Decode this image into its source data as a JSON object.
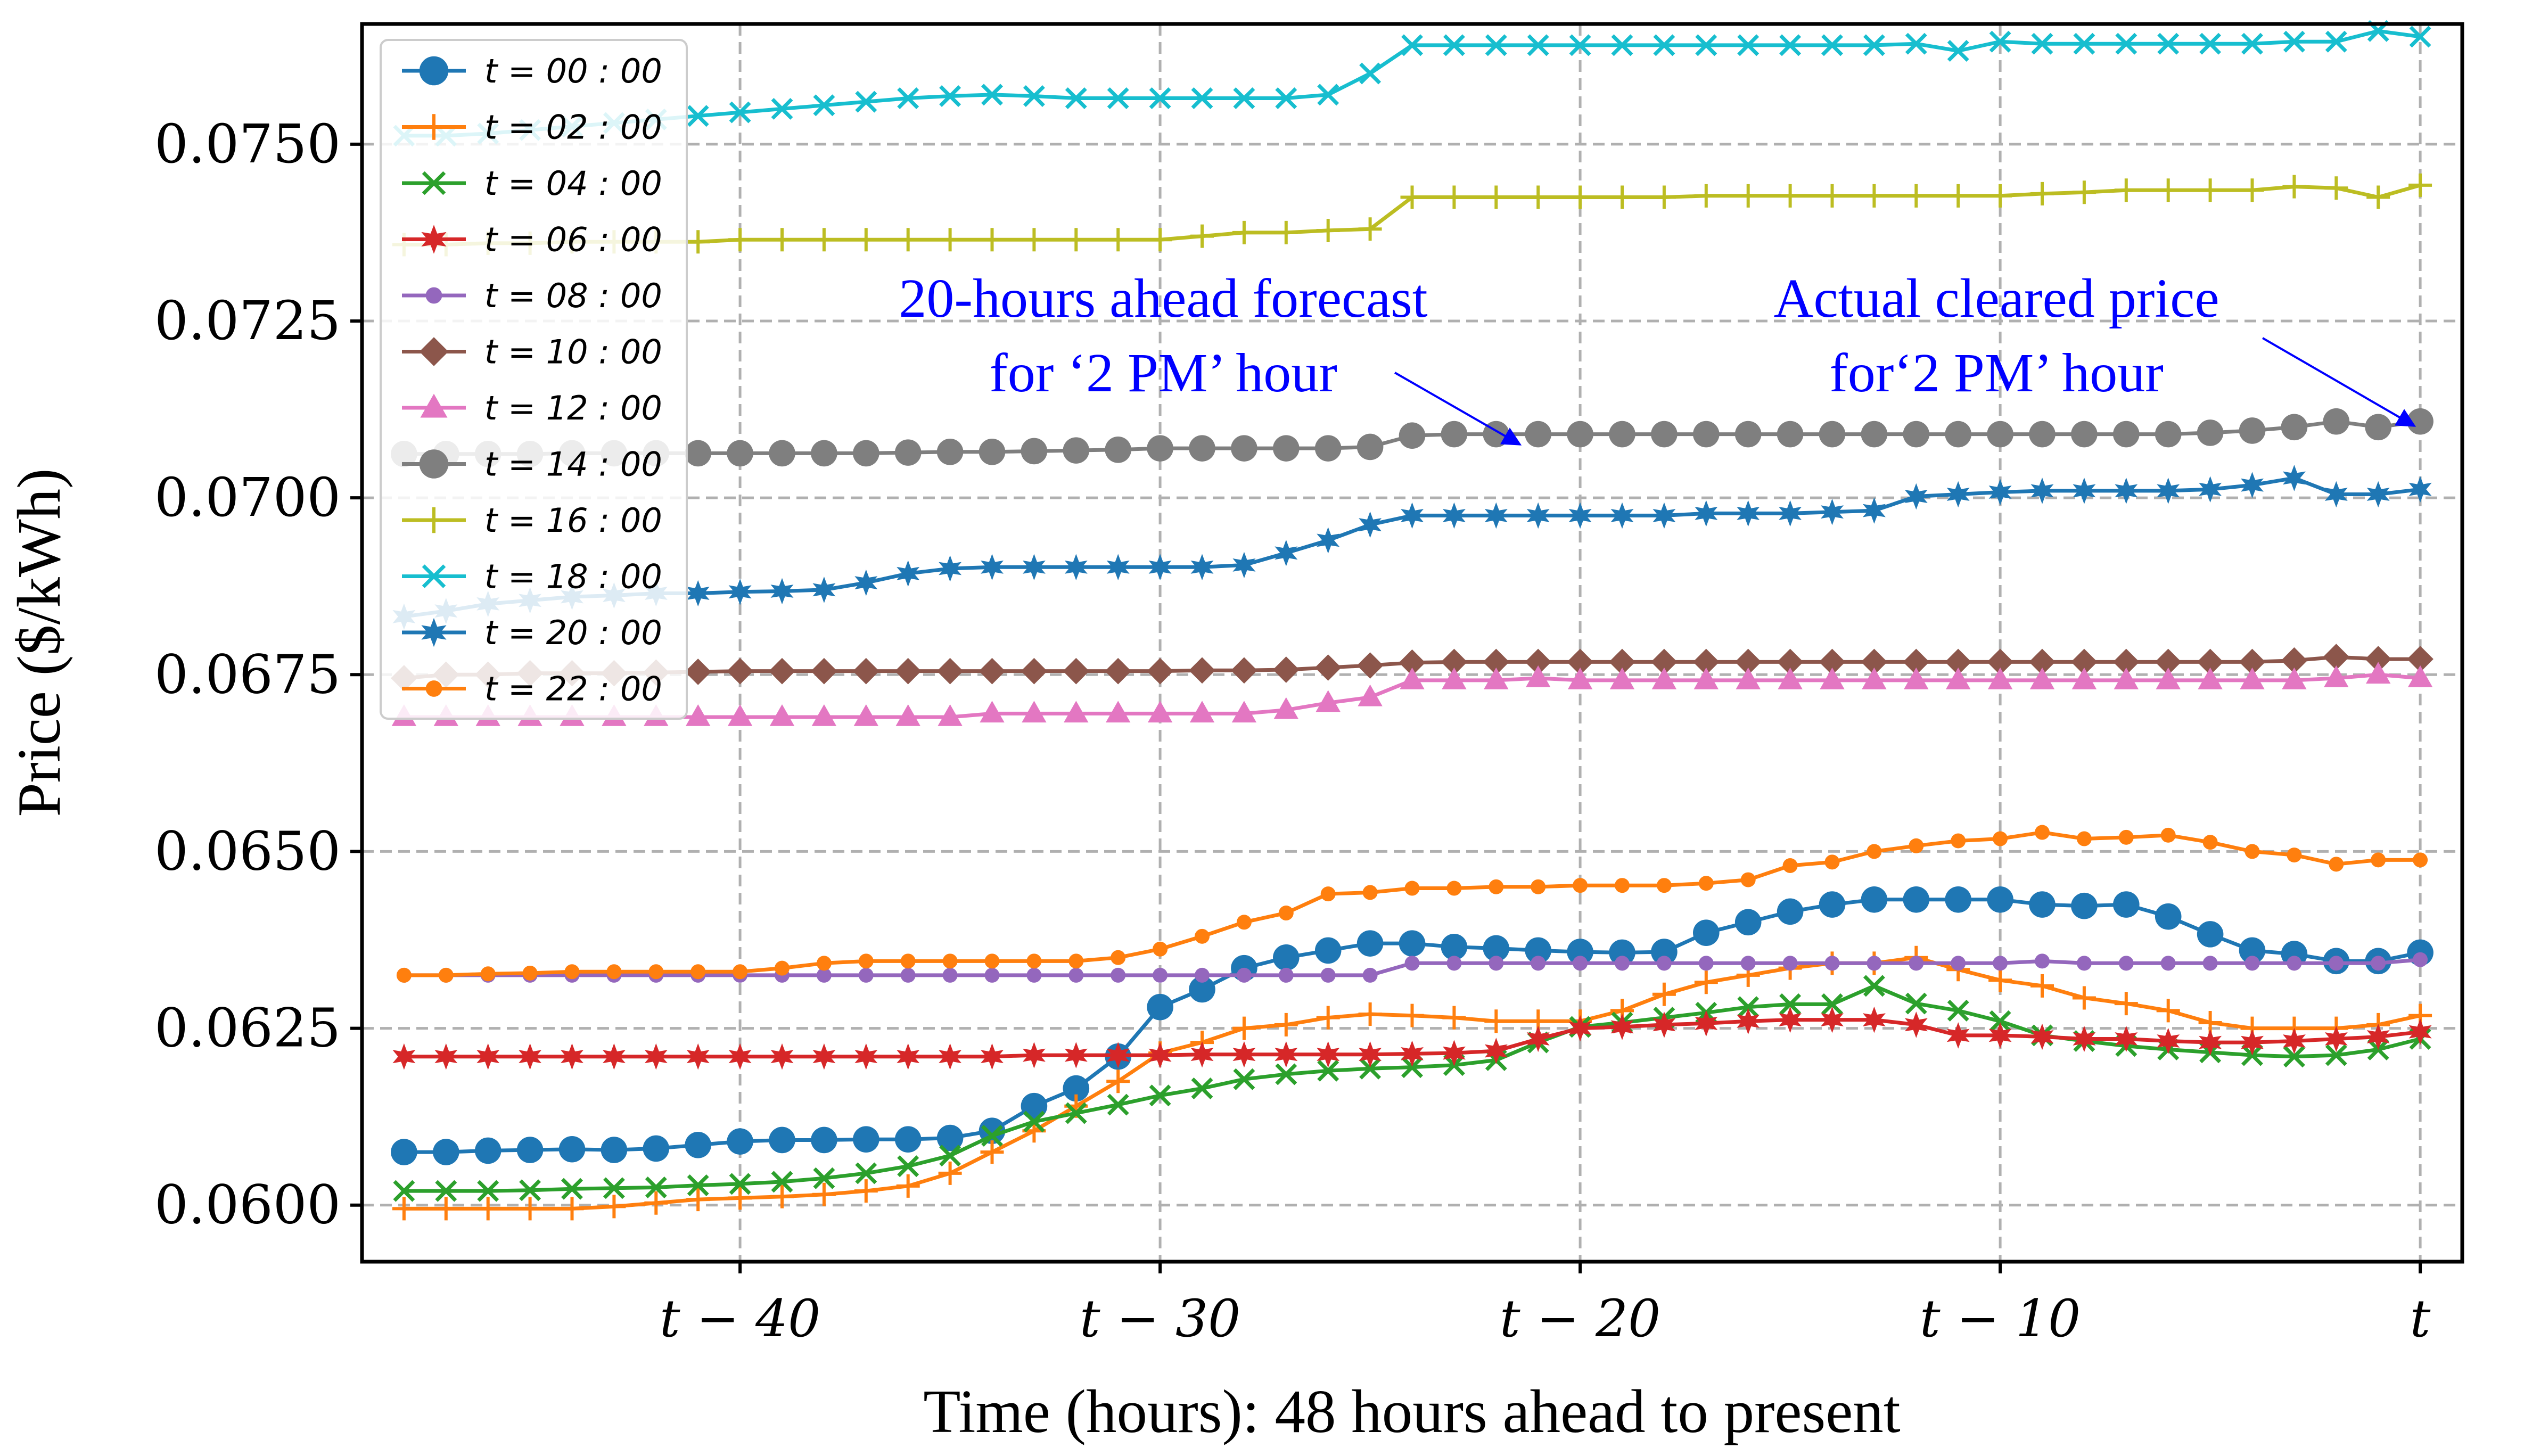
{
  "chart_data": {
    "type": "line",
    "title": "",
    "xlabel": "Time (hours): 48 hours ahead to present",
    "ylabel": "Price ($/kWh)",
    "x": [
      -48,
      -47,
      -46,
      -45,
      -44,
      -43,
      -42,
      -41,
      -40,
      -39,
      -38,
      -37,
      -36,
      -35,
      -34,
      -33,
      -32,
      -31,
      -30,
      -29,
      -28,
      -27,
      -26,
      -25,
      -24,
      -23,
      -22,
      -21,
      -20,
      -19,
      -18,
      -17,
      -16,
      -15,
      -14,
      -13,
      -12,
      -11,
      -10,
      -9,
      -8,
      -7,
      -6,
      -5,
      -4,
      -3,
      -2,
      -1,
      0
    ],
    "xlim": [
      -49,
      1
    ],
    "ylim": [
      0.0592,
      0.0767
    ],
    "xticks": [
      -40,
      -30,
      -20,
      -10,
      0
    ],
    "xtick_labels": [
      "t − 40",
      "t − 30",
      "t − 20",
      "t − 10",
      "t"
    ],
    "yticks": [
      0.06,
      0.0625,
      0.065,
      0.0675,
      0.07,
      0.0725,
      0.075
    ],
    "ytick_labels": [
      "0.0600",
      "0.0625",
      "0.0650",
      "0.0675",
      "0.0700",
      "0.0725",
      "0.0750"
    ],
    "grid": true,
    "legend_position": "top-left",
    "series": [
      {
        "name": "t = 00 : 00",
        "color": "#1f77b4",
        "marker": "circle",
        "values": [
          0.06075,
          0.06075,
          0.06077,
          0.06078,
          0.06079,
          0.06078,
          0.0608,
          0.06085,
          0.0609,
          0.06092,
          0.06092,
          0.06093,
          0.06093,
          0.06095,
          0.06105,
          0.0614,
          0.06165,
          0.0621,
          0.0628,
          0.06305,
          0.06335,
          0.0635,
          0.0636,
          0.0637,
          0.0637,
          0.06365,
          0.06363,
          0.0636,
          0.06358,
          0.06357,
          0.06358,
          0.06385,
          0.064,
          0.06415,
          0.06425,
          0.06432,
          0.06432,
          0.06432,
          0.06432,
          0.06425,
          0.06423,
          0.06425,
          0.06408,
          0.06383,
          0.0636,
          0.06355,
          0.06345,
          0.06345,
          0.06357
        ]
      },
      {
        "name": "t = 02 : 00",
        "color": "#ff7f0e",
        "marker": "plus",
        "values": [
          0.05995,
          0.05995,
          0.05995,
          0.05995,
          0.05995,
          0.05998,
          0.06003,
          0.06008,
          0.0601,
          0.06012,
          0.06015,
          0.0602,
          0.06027,
          0.06045,
          0.06075,
          0.06105,
          0.0614,
          0.06175,
          0.06215,
          0.0623,
          0.0625,
          0.06255,
          0.06265,
          0.0627,
          0.06268,
          0.06265,
          0.0626,
          0.0626,
          0.0626,
          0.06275,
          0.06298,
          0.06315,
          0.06325,
          0.06335,
          0.06342,
          0.06342,
          0.0635,
          0.06333,
          0.06318,
          0.0631,
          0.06293,
          0.06285,
          0.06275,
          0.06258,
          0.0625,
          0.0625,
          0.0625,
          0.06255,
          0.06268
        ]
      },
      {
        "name": "t = 04 : 00",
        "color": "#2ca02c",
        "marker": "x",
        "values": [
          0.0602,
          0.0602,
          0.0602,
          0.06021,
          0.06023,
          0.06024,
          0.06025,
          0.06028,
          0.0603,
          0.06033,
          0.06038,
          0.06045,
          0.06055,
          0.0607,
          0.06098,
          0.06118,
          0.0613,
          0.06142,
          0.06155,
          0.06165,
          0.06178,
          0.06185,
          0.0619,
          0.06193,
          0.06195,
          0.06198,
          0.06205,
          0.0623,
          0.06252,
          0.06258,
          0.06265,
          0.06272,
          0.0628,
          0.06284,
          0.06284,
          0.0631,
          0.06285,
          0.06275,
          0.0626,
          0.0624,
          0.06232,
          0.06225,
          0.0622,
          0.06216,
          0.06212,
          0.0621,
          0.06212,
          0.0622,
          0.06235
        ]
      },
      {
        "name": "t = 06 : 00",
        "color": "#d62728",
        "marker": "star",
        "values": [
          0.0621,
          0.0621,
          0.0621,
          0.0621,
          0.0621,
          0.0621,
          0.0621,
          0.0621,
          0.0621,
          0.0621,
          0.0621,
          0.0621,
          0.0621,
          0.0621,
          0.0621,
          0.06212,
          0.06212,
          0.06212,
          0.06212,
          0.06213,
          0.06213,
          0.06213,
          0.06213,
          0.06213,
          0.06214,
          0.06215,
          0.06218,
          0.06235,
          0.0625,
          0.06252,
          0.06255,
          0.06257,
          0.0626,
          0.06262,
          0.06262,
          0.06262,
          0.06255,
          0.0624,
          0.0624,
          0.06238,
          0.06235,
          0.06235,
          0.06232,
          0.0623,
          0.0623,
          0.06232,
          0.06235,
          0.06238,
          0.06245
        ]
      },
      {
        "name": "t = 08 : 00",
        "color": "#9467bd",
        "marker": "dot",
        "values": [
          0.06325,
          0.06325,
          0.06325,
          0.06325,
          0.06325,
          0.06325,
          0.06325,
          0.06325,
          0.06325,
          0.06325,
          0.06325,
          0.06325,
          0.06325,
          0.06325,
          0.06325,
          0.06325,
          0.06325,
          0.06325,
          0.06325,
          0.06325,
          0.06325,
          0.06325,
          0.06325,
          0.06325,
          0.06342,
          0.06342,
          0.06342,
          0.06342,
          0.06342,
          0.06342,
          0.06342,
          0.06342,
          0.06342,
          0.06342,
          0.06342,
          0.06342,
          0.06342,
          0.06342,
          0.06342,
          0.06345,
          0.06342,
          0.06342,
          0.06342,
          0.06342,
          0.06342,
          0.06342,
          0.06342,
          0.06342,
          0.06347
        ]
      },
      {
        "name": "t = 10 : 00",
        "color": "#8c564b",
        "marker": "diamond",
        "values": [
          0.06745,
          0.0675,
          0.0675,
          0.06752,
          0.06752,
          0.06752,
          0.06753,
          0.06754,
          0.06755,
          0.06755,
          0.06755,
          0.06755,
          0.06755,
          0.06755,
          0.06755,
          0.06755,
          0.06755,
          0.06755,
          0.06755,
          0.06756,
          0.06756,
          0.06757,
          0.0676,
          0.06763,
          0.06767,
          0.06768,
          0.06768,
          0.06768,
          0.06768,
          0.06768,
          0.06768,
          0.06768,
          0.06768,
          0.06768,
          0.06768,
          0.06768,
          0.06768,
          0.06768,
          0.06768,
          0.06768,
          0.06768,
          0.06768,
          0.06768,
          0.06768,
          0.06768,
          0.0677,
          0.06775,
          0.06772,
          0.06772
        ]
      },
      {
        "name": "t = 12 : 00",
        "color": "#e377c2",
        "marker": "triangle",
        "values": [
          0.0669,
          0.0669,
          0.0669,
          0.0669,
          0.0669,
          0.0669,
          0.0669,
          0.0669,
          0.0669,
          0.0669,
          0.0669,
          0.0669,
          0.0669,
          0.0669,
          0.06695,
          0.06695,
          0.06695,
          0.06695,
          0.06695,
          0.06695,
          0.06695,
          0.067,
          0.0671,
          0.06718,
          0.06742,
          0.06742,
          0.06742,
          0.06745,
          0.06742,
          0.06742,
          0.06742,
          0.06742,
          0.06742,
          0.06742,
          0.06742,
          0.06742,
          0.06742,
          0.06742,
          0.06742,
          0.06742,
          0.06742,
          0.06742,
          0.06742,
          0.06742,
          0.06742,
          0.06742,
          0.06745,
          0.0675,
          0.06745
        ]
      },
      {
        "name": "t = 14 : 00",
        "color": "#7f7f7f",
        "marker": "circle",
        "values": [
          0.07062,
          0.07062,
          0.07062,
          0.07062,
          0.07063,
          0.07063,
          0.07063,
          0.07063,
          0.07063,
          0.07063,
          0.07063,
          0.07063,
          0.07064,
          0.07065,
          0.07065,
          0.07066,
          0.07067,
          0.07068,
          0.0707,
          0.0707,
          0.0707,
          0.0707,
          0.0707,
          0.07072,
          0.07088,
          0.0709,
          0.0709,
          0.0709,
          0.0709,
          0.0709,
          0.0709,
          0.0709,
          0.0709,
          0.0709,
          0.0709,
          0.0709,
          0.0709,
          0.0709,
          0.0709,
          0.0709,
          0.0709,
          0.0709,
          0.0709,
          0.07092,
          0.07095,
          0.071,
          0.07108,
          0.071,
          0.07108
        ]
      },
      {
        "name": "t = 16 : 00",
        "color": "#bcbd22",
        "marker": "plus",
        "values": [
          0.07358,
          0.07358,
          0.0736,
          0.0736,
          0.07362,
          0.07362,
          0.07362,
          0.07362,
          0.07365,
          0.07365,
          0.07365,
          0.07365,
          0.07365,
          0.07365,
          0.07365,
          0.07365,
          0.07365,
          0.07365,
          0.07365,
          0.0737,
          0.07375,
          0.07375,
          0.07378,
          0.0738,
          0.07425,
          0.07425,
          0.07425,
          0.07425,
          0.07425,
          0.07425,
          0.07425,
          0.07427,
          0.07427,
          0.07427,
          0.07427,
          0.07427,
          0.07427,
          0.07427,
          0.07427,
          0.0743,
          0.07432,
          0.07435,
          0.07435,
          0.07435,
          0.07435,
          0.0744,
          0.07438,
          0.07425,
          0.07442
        ]
      },
      {
        "name": "t = 18 : 00",
        "color": "#17becf",
        "marker": "x",
        "values": [
          0.07512,
          0.07512,
          0.07515,
          0.0752,
          0.07525,
          0.0753,
          0.07535,
          0.0754,
          0.07545,
          0.0755,
          0.07555,
          0.0756,
          0.07565,
          0.07568,
          0.0757,
          0.07568,
          0.07565,
          0.07565,
          0.07565,
          0.07565,
          0.07565,
          0.07565,
          0.0757,
          0.076,
          0.0764,
          0.0764,
          0.0764,
          0.0764,
          0.0764,
          0.0764,
          0.0764,
          0.0764,
          0.0764,
          0.0764,
          0.0764,
          0.0764,
          0.07642,
          0.07632,
          0.07645,
          0.07642,
          0.07642,
          0.07642,
          0.07642,
          0.07642,
          0.07642,
          0.07645,
          0.07645,
          0.0766,
          0.07652
        ]
      },
      {
        "name": "t = 20 : 00",
        "color": "#1f77b4",
        "marker": "star",
        "values": [
          0.06832,
          0.0684,
          0.0685,
          0.06855,
          0.0686,
          0.06862,
          0.06865,
          0.06865,
          0.06867,
          0.06868,
          0.0687,
          0.0688,
          0.06893,
          0.069,
          0.06902,
          0.06902,
          0.06902,
          0.06902,
          0.06902,
          0.06902,
          0.06905,
          0.06922,
          0.0694,
          0.06962,
          0.06975,
          0.06975,
          0.06975,
          0.06975,
          0.06975,
          0.06975,
          0.06975,
          0.06978,
          0.06978,
          0.06978,
          0.0698,
          0.06982,
          0.07002,
          0.07005,
          0.07008,
          0.0701,
          0.0701,
          0.0701,
          0.0701,
          0.07012,
          0.07018,
          0.07028,
          0.07005,
          0.07005,
          0.07012
        ]
      },
      {
        "name": "t = 22 : 00",
        "color": "#ff7f0e",
        "marker": "dot",
        "values": [
          0.06325,
          0.06325,
          0.06327,
          0.06328,
          0.0633,
          0.0633,
          0.0633,
          0.0633,
          0.0633,
          0.06335,
          0.06342,
          0.06345,
          0.06345,
          0.06345,
          0.06345,
          0.06345,
          0.06345,
          0.0635,
          0.06362,
          0.0638,
          0.064,
          0.06413,
          0.0644,
          0.06442,
          0.06448,
          0.06448,
          0.0645,
          0.0645,
          0.06452,
          0.06452,
          0.06452,
          0.06455,
          0.0646,
          0.0648,
          0.06485,
          0.065,
          0.06508,
          0.06515,
          0.06518,
          0.06527,
          0.06518,
          0.0652,
          0.06523,
          0.06513,
          0.065,
          0.06495,
          0.06482,
          0.06488,
          0.06488
        ]
      }
    ],
    "annotations": [
      {
        "lines": [
          "20-hours ahead forecast",
          "for ‘2 PM’ hour"
        ],
        "color": "#0000ff",
        "target": [
          -20,
          0.0709
        ]
      },
      {
        "lines": [
          "Actual cleared price",
          "for‘2 PM’ hour"
        ],
        "color": "#0000ff",
        "target": [
          0,
          0.07108
        ]
      }
    ]
  }
}
